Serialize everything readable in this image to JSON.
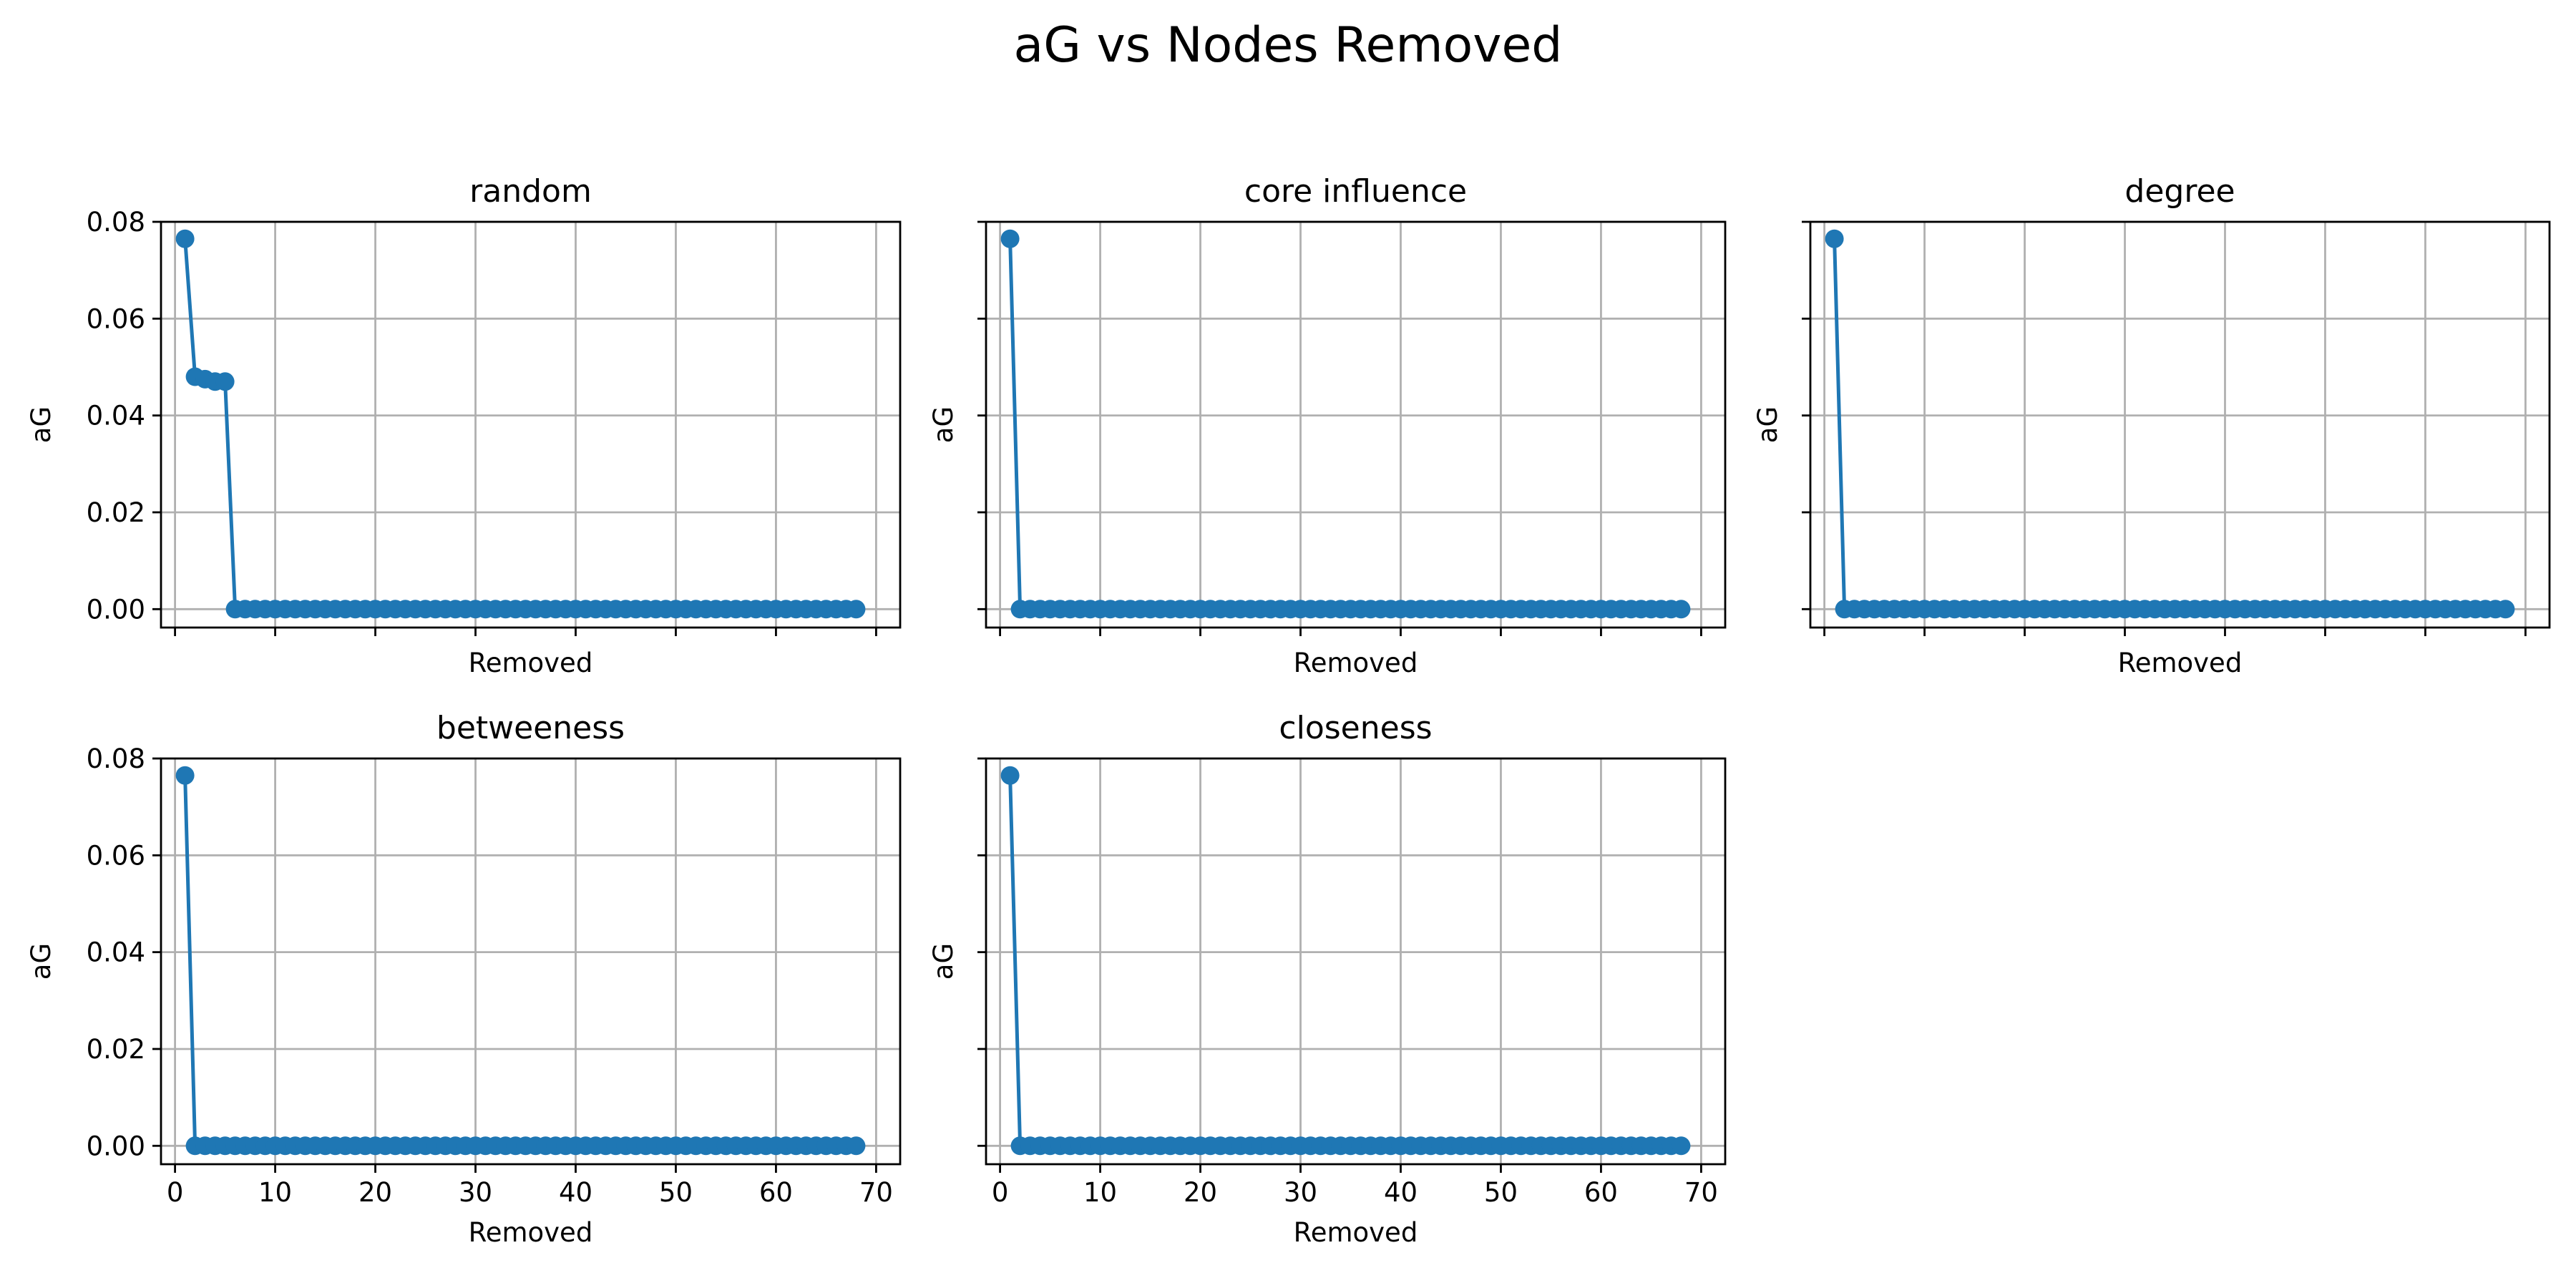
{
  "figure_title": "aG vs Nodes Removed",
  "colors": {
    "series": "#1f77b4",
    "grid": "#b0b0b0",
    "axis": "#000000"
  },
  "chart_data": [
    {
      "type": "line",
      "title": "random",
      "xlabel": "Removed",
      "ylabel": "aG",
      "xlim": [
        -1.4,
        72.4
      ],
      "ylim": [
        -0.0038,
        0.08
      ],
      "xticks": [
        0,
        10,
        20,
        30,
        40,
        50,
        60,
        70
      ],
      "yticks": [
        0.0,
        0.02,
        0.04,
        0.06,
        0.08
      ],
      "ytick_labels": [
        "0.00",
        "0.02",
        "0.04",
        "0.06",
        "0.08"
      ],
      "show_xtick_labels": false,
      "show_ytick_labels": true,
      "grid": true,
      "marker": "circle",
      "x": [
        1,
        2,
        3,
        4,
        5,
        6,
        7,
        8,
        9,
        10,
        11,
        12,
        13,
        14,
        15,
        16,
        17,
        18,
        19,
        20,
        21,
        22,
        23,
        24,
        25,
        26,
        27,
        28,
        29,
        30,
        31,
        32,
        33,
        34,
        35,
        36,
        37,
        38,
        39,
        40,
        41,
        42,
        43,
        44,
        45,
        46,
        47,
        48,
        49,
        50,
        51,
        52,
        53,
        54,
        55,
        56,
        57,
        58,
        59,
        60,
        61,
        62,
        63,
        64,
        65,
        66,
        67,
        68
      ],
      "y": [
        0.0765,
        0.048,
        0.0475,
        0.047,
        0.047,
        0,
        0,
        0,
        0,
        0,
        0,
        0,
        0,
        0,
        0,
        0,
        0,
        0,
        0,
        0,
        0,
        0,
        0,
        0,
        0,
        0,
        0,
        0,
        0,
        0,
        0,
        0,
        0,
        0,
        0,
        0,
        0,
        0,
        0,
        0,
        0,
        0,
        0,
        0,
        0,
        0,
        0,
        0,
        0,
        0,
        0,
        0,
        0,
        0,
        0,
        0,
        0,
        0,
        0,
        0,
        0,
        0,
        0,
        0,
        0,
        0,
        0,
        0
      ]
    },
    {
      "type": "line",
      "title": "core influence",
      "xlabel": "Removed",
      "ylabel": "aG",
      "xlim": [
        -1.4,
        72.4
      ],
      "ylim": [
        -0.0038,
        0.08
      ],
      "xticks": [
        0,
        10,
        20,
        30,
        40,
        50,
        60,
        70
      ],
      "yticks": [
        0.0,
        0.02,
        0.04,
        0.06,
        0.08
      ],
      "ytick_labels": [
        "0.00",
        "0.02",
        "0.04",
        "0.06",
        "0.08"
      ],
      "show_xtick_labels": false,
      "show_ytick_labels": false,
      "grid": true,
      "marker": "circle",
      "x": [
        1,
        2,
        3,
        4,
        5,
        6,
        7,
        8,
        9,
        10,
        11,
        12,
        13,
        14,
        15,
        16,
        17,
        18,
        19,
        20,
        21,
        22,
        23,
        24,
        25,
        26,
        27,
        28,
        29,
        30,
        31,
        32,
        33,
        34,
        35,
        36,
        37,
        38,
        39,
        40,
        41,
        42,
        43,
        44,
        45,
        46,
        47,
        48,
        49,
        50,
        51,
        52,
        53,
        54,
        55,
        56,
        57,
        58,
        59,
        60,
        61,
        62,
        63,
        64,
        65,
        66,
        67,
        68
      ],
      "y": [
        0.0765,
        0,
        0,
        0,
        0,
        0,
        0,
        0,
        0,
        0,
        0,
        0,
        0,
        0,
        0,
        0,
        0,
        0,
        0,
        0,
        0,
        0,
        0,
        0,
        0,
        0,
        0,
        0,
        0,
        0,
        0,
        0,
        0,
        0,
        0,
        0,
        0,
        0,
        0,
        0,
        0,
        0,
        0,
        0,
        0,
        0,
        0,
        0,
        0,
        0,
        0,
        0,
        0,
        0,
        0,
        0,
        0,
        0,
        0,
        0,
        0,
        0,
        0,
        0,
        0,
        0,
        0,
        0
      ]
    },
    {
      "type": "line",
      "title": "degree",
      "xlabel": "Removed",
      "ylabel": "aG",
      "xlim": [
        -1.4,
        72.4
      ],
      "ylim": [
        -0.0038,
        0.08
      ],
      "xticks": [
        0,
        10,
        20,
        30,
        40,
        50,
        60,
        70
      ],
      "yticks": [
        0.0,
        0.02,
        0.04,
        0.06,
        0.08
      ],
      "ytick_labels": [
        "0.00",
        "0.02",
        "0.04",
        "0.06",
        "0.08"
      ],
      "show_xtick_labels": false,
      "show_ytick_labels": false,
      "grid": true,
      "marker": "circle",
      "x": [
        1,
        2,
        3,
        4,
        5,
        6,
        7,
        8,
        9,
        10,
        11,
        12,
        13,
        14,
        15,
        16,
        17,
        18,
        19,
        20,
        21,
        22,
        23,
        24,
        25,
        26,
        27,
        28,
        29,
        30,
        31,
        32,
        33,
        34,
        35,
        36,
        37,
        38,
        39,
        40,
        41,
        42,
        43,
        44,
        45,
        46,
        47,
        48,
        49,
        50,
        51,
        52,
        53,
        54,
        55,
        56,
        57,
        58,
        59,
        60,
        61,
        62,
        63,
        64,
        65,
        66,
        67,
        68
      ],
      "y": [
        0.0765,
        0,
        0,
        0,
        0,
        0,
        0,
        0,
        0,
        0,
        0,
        0,
        0,
        0,
        0,
        0,
        0,
        0,
        0,
        0,
        0,
        0,
        0,
        0,
        0,
        0,
        0,
        0,
        0,
        0,
        0,
        0,
        0,
        0,
        0,
        0,
        0,
        0,
        0,
        0,
        0,
        0,
        0,
        0,
        0,
        0,
        0,
        0,
        0,
        0,
        0,
        0,
        0,
        0,
        0,
        0,
        0,
        0,
        0,
        0,
        0,
        0,
        0,
        0,
        0,
        0,
        0,
        0
      ]
    },
    {
      "type": "line",
      "title": "betweeness",
      "xlabel": "Removed",
      "ylabel": "aG",
      "xlim": [
        -1.4,
        72.4
      ],
      "ylim": [
        -0.0038,
        0.08
      ],
      "xticks": [
        0,
        10,
        20,
        30,
        40,
        50,
        60,
        70
      ],
      "xtick_labels": [
        "0",
        "10",
        "20",
        "30",
        "40",
        "50",
        "60",
        "70"
      ],
      "yticks": [
        0.0,
        0.02,
        0.04,
        0.06,
        0.08
      ],
      "ytick_labels": [
        "0.00",
        "0.02",
        "0.04",
        "0.06",
        "0.08"
      ],
      "show_xtick_labels": true,
      "show_ytick_labels": true,
      "grid": true,
      "marker": "circle",
      "x": [
        1,
        2,
        3,
        4,
        5,
        6,
        7,
        8,
        9,
        10,
        11,
        12,
        13,
        14,
        15,
        16,
        17,
        18,
        19,
        20,
        21,
        22,
        23,
        24,
        25,
        26,
        27,
        28,
        29,
        30,
        31,
        32,
        33,
        34,
        35,
        36,
        37,
        38,
        39,
        40,
        41,
        42,
        43,
        44,
        45,
        46,
        47,
        48,
        49,
        50,
        51,
        52,
        53,
        54,
        55,
        56,
        57,
        58,
        59,
        60,
        61,
        62,
        63,
        64,
        65,
        66,
        67,
        68
      ],
      "y": [
        0.0765,
        0,
        0,
        0,
        0,
        0,
        0,
        0,
        0,
        0,
        0,
        0,
        0,
        0,
        0,
        0,
        0,
        0,
        0,
        0,
        0,
        0,
        0,
        0,
        0,
        0,
        0,
        0,
        0,
        0,
        0,
        0,
        0,
        0,
        0,
        0,
        0,
        0,
        0,
        0,
        0,
        0,
        0,
        0,
        0,
        0,
        0,
        0,
        0,
        0,
        0,
        0,
        0,
        0,
        0,
        0,
        0,
        0,
        0,
        0,
        0,
        0,
        0,
        0,
        0,
        0,
        0,
        0
      ]
    },
    {
      "type": "line",
      "title": "closeness",
      "xlabel": "Removed",
      "ylabel": "aG",
      "xlim": [
        -1.4,
        72.4
      ],
      "ylim": [
        -0.0038,
        0.08
      ],
      "xticks": [
        0,
        10,
        20,
        30,
        40,
        50,
        60,
        70
      ],
      "xtick_labels": [
        "0",
        "10",
        "20",
        "30",
        "40",
        "50",
        "60",
        "70"
      ],
      "yticks": [
        0.0,
        0.02,
        0.04,
        0.06,
        0.08
      ],
      "ytick_labels": [
        "0.00",
        "0.02",
        "0.04",
        "0.06",
        "0.08"
      ],
      "show_xtick_labels": true,
      "show_ytick_labels": false,
      "grid": true,
      "marker": "circle",
      "x": [
        1,
        2,
        3,
        4,
        5,
        6,
        7,
        8,
        9,
        10,
        11,
        12,
        13,
        14,
        15,
        16,
        17,
        18,
        19,
        20,
        21,
        22,
        23,
        24,
        25,
        26,
        27,
        28,
        29,
        30,
        31,
        32,
        33,
        34,
        35,
        36,
        37,
        38,
        39,
        40,
        41,
        42,
        43,
        44,
        45,
        46,
        47,
        48,
        49,
        50,
        51,
        52,
        53,
        54,
        55,
        56,
        57,
        58,
        59,
        60,
        61,
        62,
        63,
        64,
        65,
        66,
        67,
        68
      ],
      "y": [
        0.0765,
        0,
        0,
        0,
        0,
        0,
        0,
        0,
        0,
        0,
        0,
        0,
        0,
        0,
        0,
        0,
        0,
        0,
        0,
        0,
        0,
        0,
        0,
        0,
        0,
        0,
        0,
        0,
        0,
        0,
        0,
        0,
        0,
        0,
        0,
        0,
        0,
        0,
        0,
        0,
        0,
        0,
        0,
        0,
        0,
        0,
        0,
        0,
        0,
        0,
        0,
        0,
        0,
        0,
        0,
        0,
        0,
        0,
        0,
        0,
        0,
        0,
        0,
        0,
        0,
        0,
        0,
        0
      ]
    }
  ]
}
